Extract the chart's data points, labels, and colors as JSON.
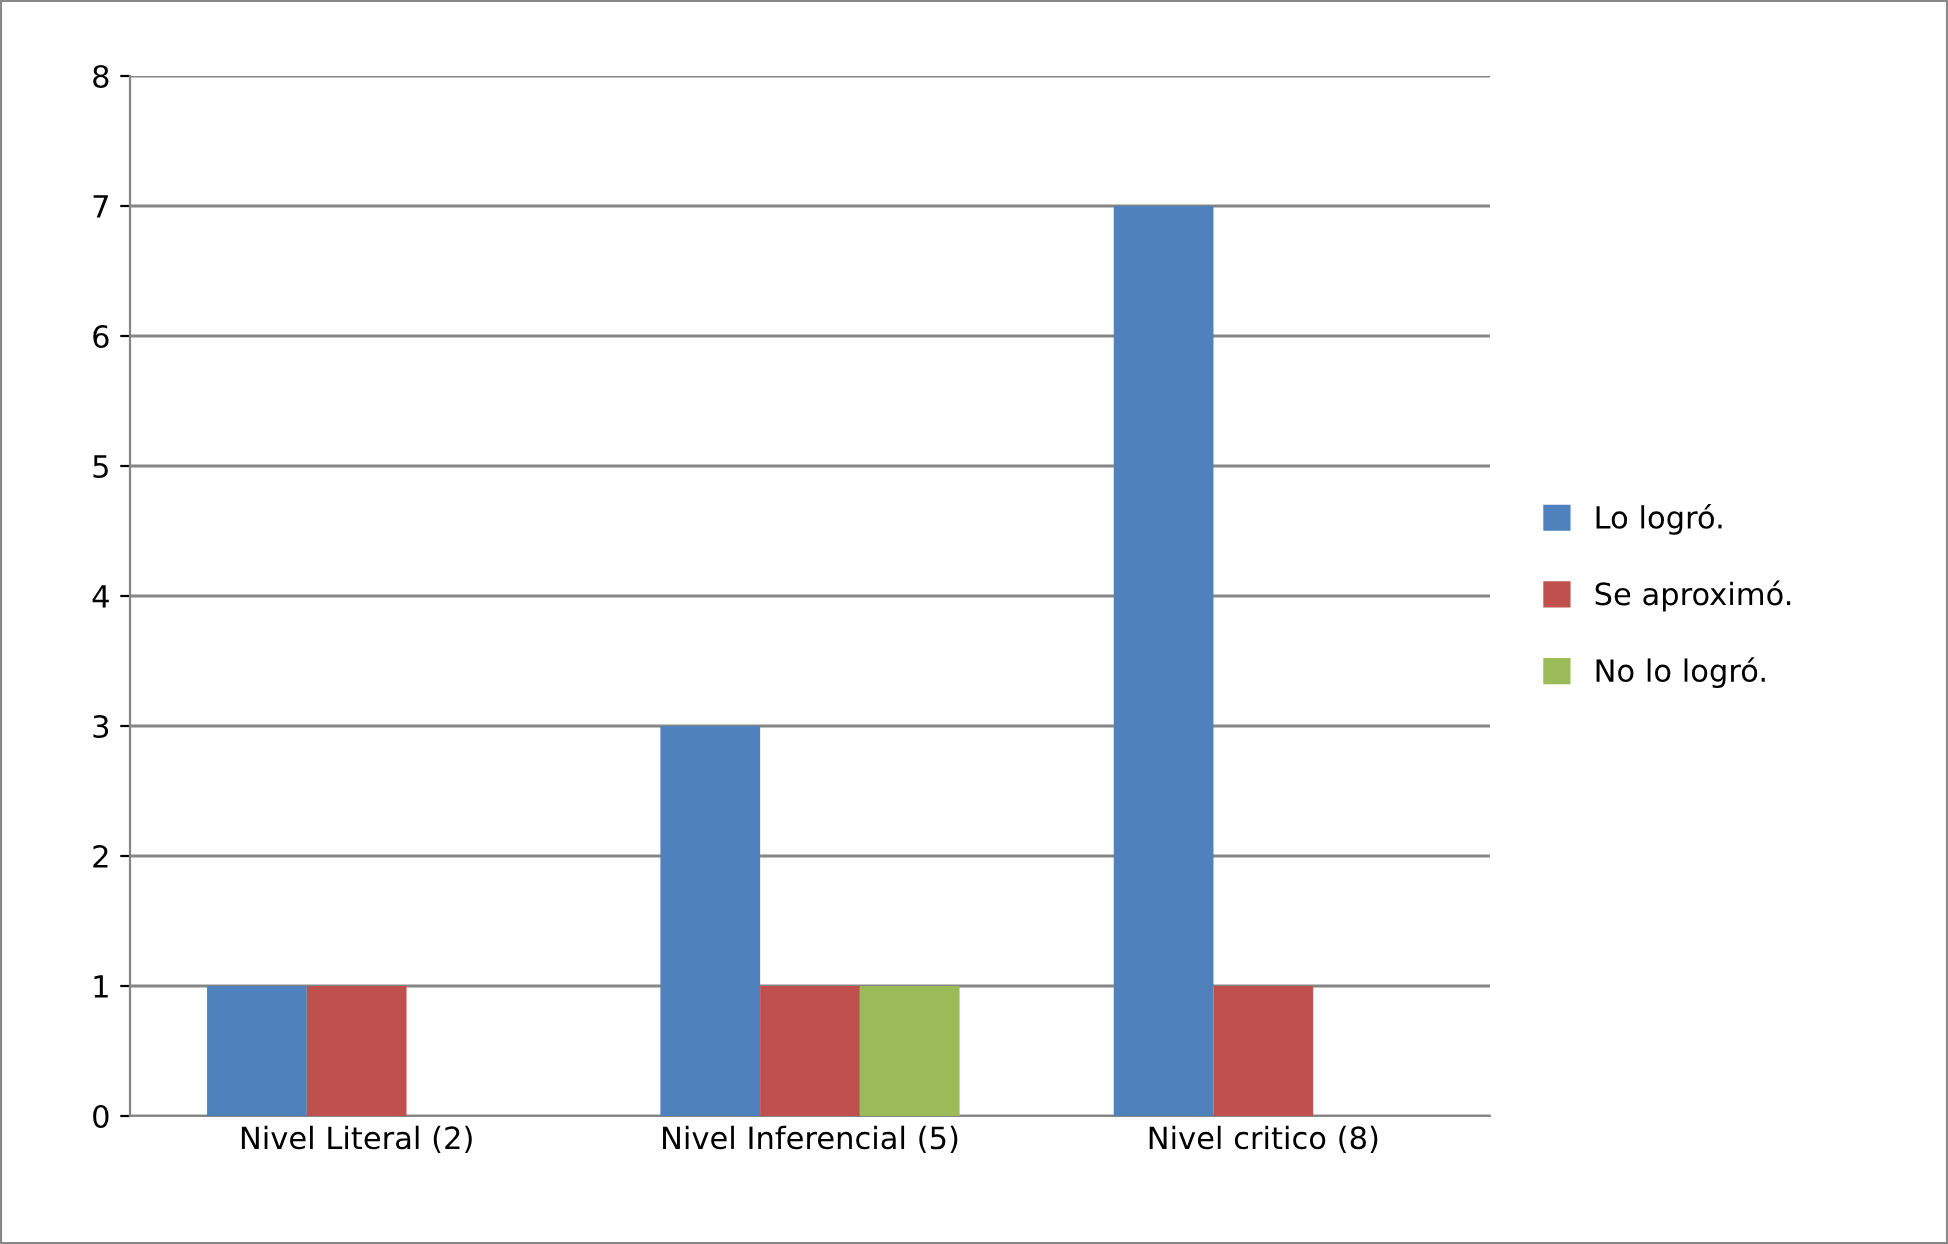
{
  "chart_data": {
    "type": "bar",
    "categories": [
      "Nivel Literal (2)",
      "Nivel Inferencial (5)",
      "Nivel critico (8)"
    ],
    "series": [
      {
        "name": "Lo logró.",
        "color": "#4f81bd",
        "values": [
          1,
          3,
          7
        ]
      },
      {
        "name": "Se aproximó.",
        "color": "#c0504d",
        "values": [
          1,
          1,
          1
        ]
      },
      {
        "name": "No lo logró.",
        "color": "#9bbb59",
        "values": [
          0,
          1,
          0
        ]
      }
    ],
    "ylim": [
      0,
      8
    ],
    "yticks": [
      0,
      1,
      2,
      3,
      4,
      5,
      6,
      7,
      8
    ],
    "grid": "y",
    "legend": "right"
  }
}
